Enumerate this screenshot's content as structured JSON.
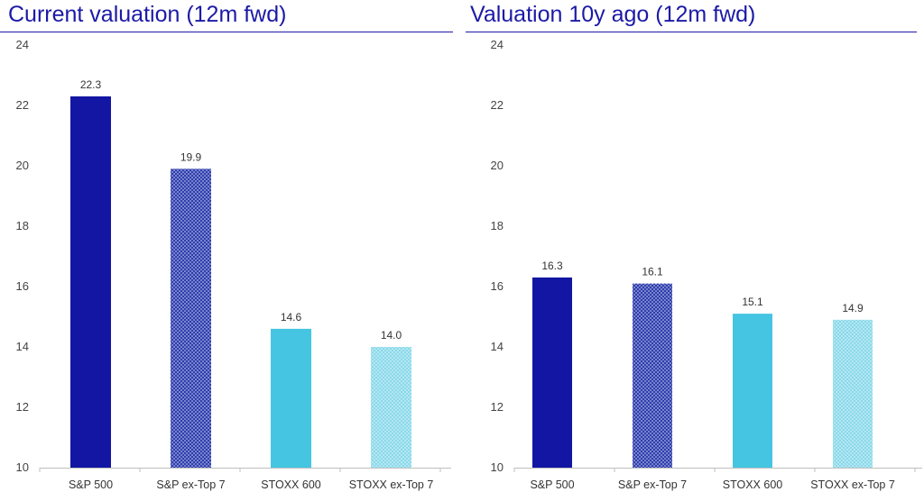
{
  "chart_data": [
    {
      "type": "bar",
      "title": "Current valuation (12m fwd)",
      "categories": [
        "S&P 500",
        "S&P ex-Top 7",
        "STOXX 600",
        "STOXX ex-Top 7"
      ],
      "values": [
        22.3,
        19.9,
        14.6,
        14.0
      ],
      "data_labels": [
        "22.3",
        "19.9",
        "14.6",
        "14.0"
      ],
      "ylim": [
        10,
        24
      ],
      "yticks": [
        10,
        12,
        14,
        16,
        18,
        20,
        22,
        24
      ],
      "xlabel": "",
      "ylabel": "",
      "grid": false,
      "legend": "none",
      "colors": [
        "#1216a3",
        "#2f3eae",
        "#45c5e2",
        "#8ad9ea"
      ],
      "patterns": [
        "solid",
        "dotted",
        "solid",
        "dotted"
      ]
    },
    {
      "type": "bar",
      "title": "Valuation 10y ago (12m fwd)",
      "categories": [
        "S&P 500",
        "S&P ex-Top 7",
        "STOXX 600",
        "STOXX ex-Top 7"
      ],
      "values": [
        16.3,
        16.1,
        15.1,
        14.9
      ],
      "data_labels": [
        "16.3",
        "16.1",
        "15.1",
        "14.9"
      ],
      "ylim": [
        10,
        24
      ],
      "yticks": [
        10,
        12,
        14,
        16,
        18,
        20,
        22,
        24
      ],
      "xlabel": "",
      "ylabel": "",
      "grid": false,
      "legend": "none",
      "colors": [
        "#1216a3",
        "#2f3eae",
        "#45c5e2",
        "#8ad9ea"
      ],
      "patterns": [
        "solid",
        "dotted",
        "solid",
        "dotted"
      ]
    }
  ]
}
